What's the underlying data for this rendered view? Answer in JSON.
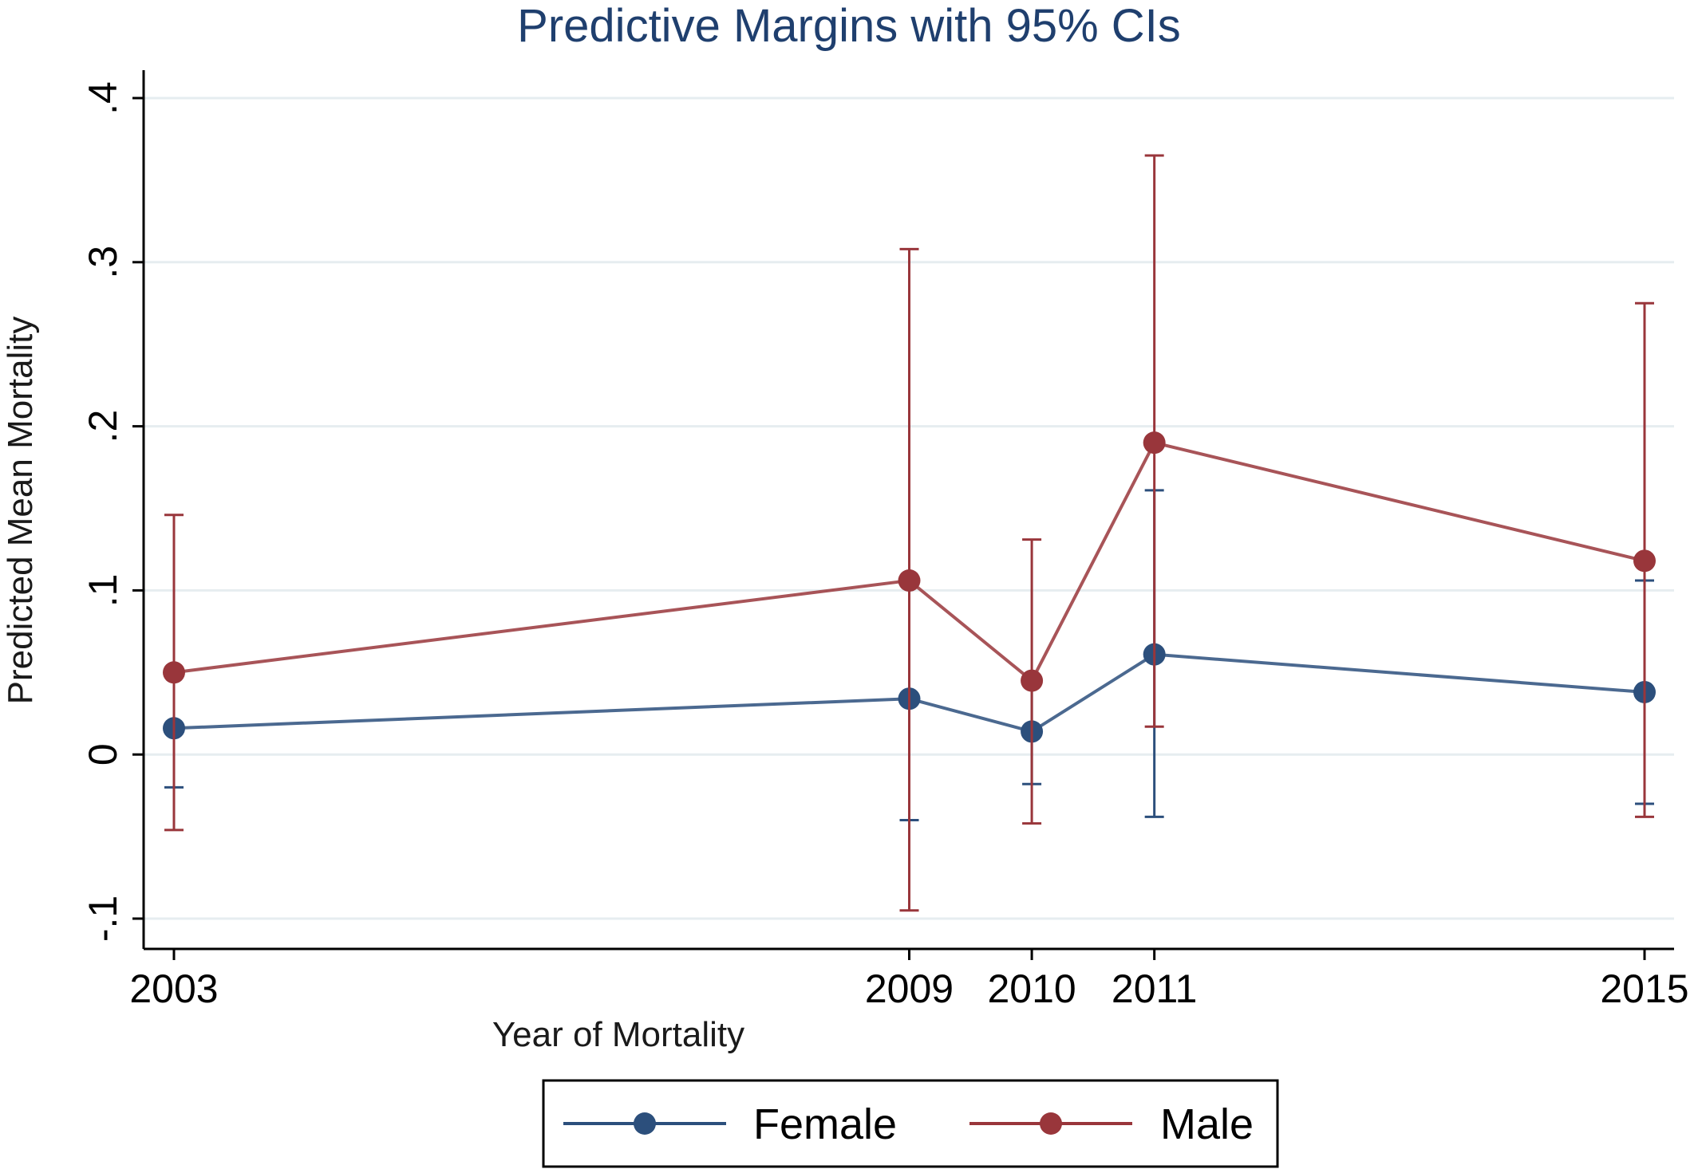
{
  "chart_data": {
    "type": "line",
    "title": "Predictive Margins with 95% CIs",
    "xlabel": "Year of  Mortality",
    "ylabel": "Predicted Mean Mortality",
    "x": [
      2003,
      2009,
      2010,
      2011,
      2015
    ],
    "x_tick_labels": [
      "2003",
      "2009",
      "2010",
      "2011",
      "2015"
    ],
    "xlim": [
      2003,
      2015
    ],
    "ylim": [
      -0.1,
      0.4
    ],
    "y_ticks": [
      -0.1,
      0,
      0.1,
      0.2,
      0.3,
      0.4
    ],
    "y_tick_labels": [
      "-.1",
      "0",
      ".1",
      ".2",
      ".3",
      ".4"
    ],
    "grid": true,
    "legend_position": "bottom",
    "error_bars": "95% CI",
    "series": [
      {
        "name": "Female",
        "color": "#2c4f7c",
        "values": [
          0.016,
          0.034,
          0.014,
          0.061,
          0.038
        ],
        "ci_lower": [
          -0.02,
          -0.04,
          -0.018,
          -0.038,
          -0.03
        ],
        "ci_upper": [
          0.05,
          0.108,
          0.046,
          0.161,
          0.106
        ]
      },
      {
        "name": "Male",
        "color": "#99363b",
        "values": [
          0.05,
          0.106,
          0.045,
          0.19,
          0.118
        ],
        "ci_lower": [
          -0.046,
          -0.095,
          -0.042,
          0.017,
          -0.038
        ],
        "ci_upper": [
          0.146,
          0.308,
          0.131,
          0.365,
          0.275
        ]
      }
    ]
  }
}
